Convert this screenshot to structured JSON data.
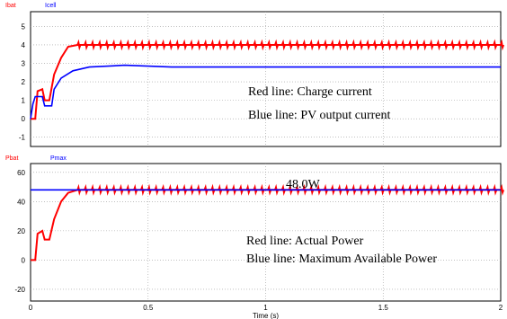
{
  "chart_data": [
    {
      "type": "line",
      "legend": [
        "Ibat",
        "Icell"
      ],
      "colors": {
        "Ibat": "#ff0000",
        "Icell": "#0000ff"
      },
      "xlim": [
        0,
        2
      ],
      "ylim": [
        -1.5,
        5.8
      ],
      "yticks": [
        "5",
        "4",
        "3",
        "2",
        "1",
        "0",
        "-1"
      ],
      "ytick_values": [
        5,
        4,
        3,
        2,
        1,
        0,
        -1
      ],
      "grid": true,
      "annotations": [
        "Red line: Charge current",
        "Blue line: PV output current"
      ],
      "series": [
        {
          "name": "Ibat",
          "x": [
            0,
            0.02,
            0.03,
            0.05,
            0.06,
            0.08,
            0.1,
            0.13,
            0.16,
            0.2,
            0.3,
            0.5,
            1.0,
            1.5,
            2.0
          ],
          "y": [
            0,
            0,
            1.5,
            1.6,
            1.0,
            1.0,
            2.4,
            3.3,
            3.9,
            4.0,
            4.0,
            4.0,
            4.0,
            4.0,
            4.0
          ]
        },
        {
          "name": "Icell",
          "x": [
            0,
            0.01,
            0.02,
            0.05,
            0.06,
            0.09,
            0.1,
            0.13,
            0.18,
            0.25,
            0.4,
            0.6,
            1.0,
            1.5,
            2.0
          ],
          "y": [
            0,
            0.8,
            1.2,
            1.2,
            0.7,
            0.7,
            1.6,
            2.2,
            2.6,
            2.8,
            2.9,
            2.8,
            2.8,
            2.8,
            2.8
          ]
        }
      ]
    },
    {
      "type": "line",
      "legend": [
        "Pbat",
        "Pmax"
      ],
      "colors": {
        "Pbat": "#ff0000",
        "Pmax": "#0000ff"
      },
      "xlim": [
        0,
        2
      ],
      "ylim": [
        -28,
        66
      ],
      "xticks": [
        "0",
        "0.5",
        "1",
        "1.5",
        "2"
      ],
      "xtick_values": [
        0,
        0.5,
        1,
        1.5,
        2
      ],
      "yticks": [
        "60",
        "40",
        "20",
        "0",
        "-20"
      ],
      "ytick_values": [
        60,
        40,
        20,
        0,
        -20
      ],
      "xlabel": "Time (s)",
      "grid": true,
      "annotations": [
        "48.0W",
        "Red line:  Actual Power",
        "Blue line: Maximum Available Power"
      ],
      "series": [
        {
          "name": "Pbat",
          "x": [
            0,
            0.02,
            0.03,
            0.05,
            0.06,
            0.08,
            0.1,
            0.13,
            0.16,
            0.2,
            0.3,
            0.5,
            1.0,
            1.5,
            2.0
          ],
          "y": [
            0,
            0,
            18,
            20,
            14,
            14,
            28,
            40,
            46,
            48,
            48,
            48,
            48,
            48,
            48
          ]
        },
        {
          "name": "Pmax",
          "x": [
            0,
            2
          ],
          "y": [
            48,
            48
          ]
        }
      ]
    }
  ]
}
